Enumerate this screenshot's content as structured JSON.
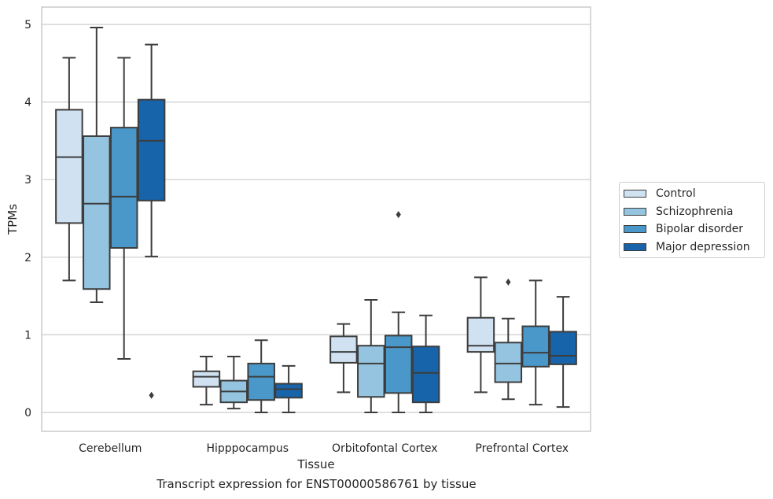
{
  "chart_data": {
    "type": "box",
    "caption": "Transcript expression for ENST00000586761 by tissue",
    "xlabel": "Tissue",
    "ylabel": "TPMs",
    "ylim": [
      -0.24,
      5.22
    ],
    "yticks": [
      0,
      1,
      2,
      3,
      4,
      5
    ],
    "grid": "horizontal",
    "legend_position": "right",
    "categories": [
      "Cerebellum",
      "Hipppocampus",
      "Orbitofontal Cortex",
      "Prefrontal Cortex"
    ],
    "series": [
      {
        "name": "Control",
        "color": "#d0e1f2",
        "boxes": [
          {
            "whislo": 1.7,
            "q1": 2.44,
            "med": 3.29,
            "q3": 3.9,
            "whishi": 4.57,
            "fliers": []
          },
          {
            "whislo": 0.1,
            "q1": 0.33,
            "med": 0.46,
            "q3": 0.53,
            "whishi": 0.72,
            "fliers": []
          },
          {
            "whislo": 0.26,
            "q1": 0.64,
            "med": 0.78,
            "q3": 0.98,
            "whishi": 1.14,
            "fliers": []
          },
          {
            "whislo": 0.26,
            "q1": 0.78,
            "med": 0.86,
            "q3": 1.22,
            "whishi": 1.74,
            "fliers": []
          }
        ]
      },
      {
        "name": "Schizophrenia",
        "color": "#94c4df",
        "boxes": [
          {
            "whislo": 1.42,
            "q1": 1.59,
            "med": 2.69,
            "q3": 3.56,
            "whishi": 4.96,
            "fliers": []
          },
          {
            "whislo": 0.05,
            "q1": 0.13,
            "med": 0.27,
            "q3": 0.41,
            "whishi": 0.72,
            "fliers": []
          },
          {
            "whislo": 0.0,
            "q1": 0.2,
            "med": 0.63,
            "q3": 0.86,
            "whishi": 1.45,
            "fliers": []
          },
          {
            "whislo": 0.17,
            "q1": 0.39,
            "med": 0.63,
            "q3": 0.9,
            "whishi": 1.21,
            "fliers": [
              1.68
            ]
          }
        ]
      },
      {
        "name": "Bipolar disorder",
        "color": "#4a98c9",
        "boxes": [
          {
            "whislo": 0.69,
            "q1": 2.12,
            "med": 2.78,
            "q3": 3.67,
            "whishi": 4.57,
            "fliers": []
          },
          {
            "whislo": 0.0,
            "q1": 0.16,
            "med": 0.46,
            "q3": 0.63,
            "whishi": 0.93,
            "fliers": []
          },
          {
            "whislo": 0.0,
            "q1": 0.25,
            "med": 0.84,
            "q3": 0.99,
            "whishi": 1.29,
            "fliers": [
              2.55
            ]
          },
          {
            "whislo": 0.1,
            "q1": 0.59,
            "med": 0.77,
            "q3": 1.11,
            "whishi": 1.7,
            "fliers": []
          }
        ]
      },
      {
        "name": "Major depression",
        "color": "#1764ab",
        "boxes": [
          {
            "whislo": 2.01,
            "q1": 2.73,
            "med": 3.5,
            "q3": 4.03,
            "whishi": 4.74,
            "fliers": [
              0.22
            ]
          },
          {
            "whislo": 0.0,
            "q1": 0.19,
            "med": 0.3,
            "q3": 0.37,
            "whishi": 0.6,
            "fliers": []
          },
          {
            "whislo": 0.0,
            "q1": 0.13,
            "med": 0.51,
            "q3": 0.85,
            "whishi": 1.25,
            "fliers": []
          },
          {
            "whislo": 0.07,
            "q1": 0.62,
            "med": 0.73,
            "q3": 1.04,
            "whishi": 1.49,
            "fliers": []
          }
        ]
      }
    ]
  }
}
